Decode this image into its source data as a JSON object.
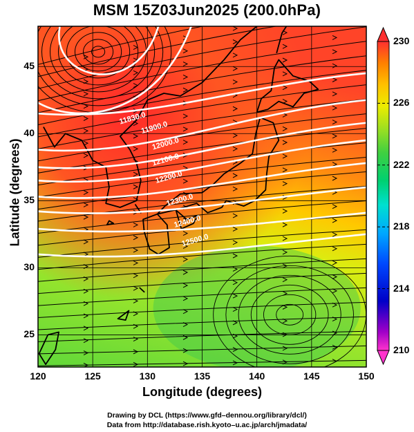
{
  "title": "MSM 15Z03Jun2025 (200.0hPa)",
  "map": {
    "xlabel": "Longitude (degrees)",
    "ylabel": "Latitude  (degrees)",
    "lon_range": [
      120,
      150
    ],
    "lat_range": [
      22.6,
      48
    ],
    "lon_ticks": [
      "120",
      "125",
      "130",
      "135",
      "140",
      "145",
      "150"
    ],
    "lat_ticks": [
      "25",
      "30",
      "35",
      "40",
      "45"
    ],
    "grid": true,
    "contour_labels": [
      "11830.0",
      "11900.0",
      "12000.0",
      "12100.0",
      "12200.0",
      "12300.0",
      "12400.0",
      "12500.0"
    ],
    "colorbar": {
      "min": 210,
      "max": 230,
      "tick_labels": [
        "230",
        "226",
        "222",
        "218",
        "214",
        "210"
      ],
      "colors": [
        "#ff33cc",
        "#8000c0",
        "#0000d0",
        "#0050ff",
        "#00a8ff",
        "#00e0d0",
        "#00d070",
        "#40d040",
        "#a0e020",
        "#e8e800",
        "#ffc000",
        "#ff8000",
        "#ff3030"
      ]
    }
  },
  "credits": {
    "line1": "Drawing by DCL (https://www.gfd–dennou.org/library/dcl/)",
    "line2": "Data from http://database.rish.kyoto–u.ac.jp/arch/jmadata/"
  }
}
